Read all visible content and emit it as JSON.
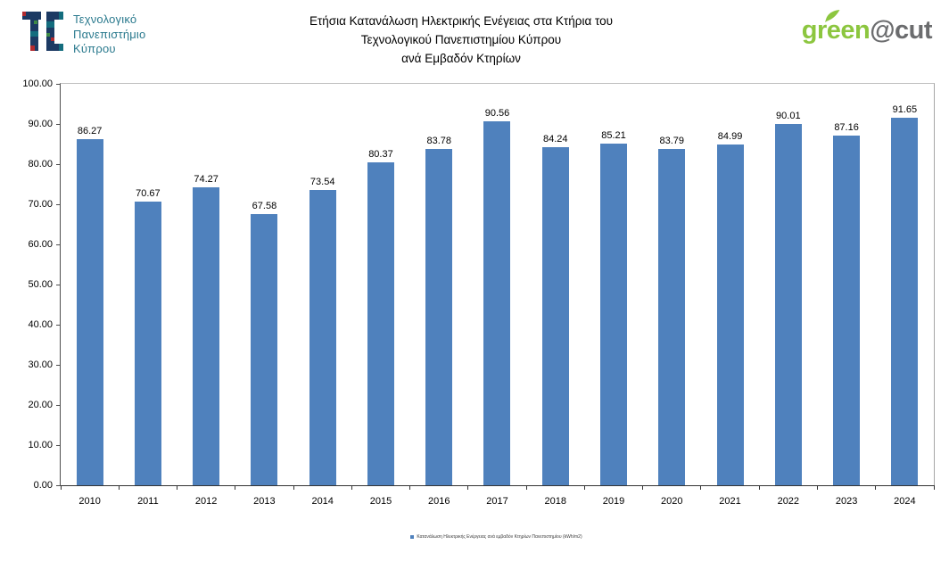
{
  "header": {
    "university": {
      "lines": [
        "Τεχνολογικό",
        "Πανεπιστήμιο",
        "Κύπρου"
      ],
      "text_color": "#2B7A8E"
    },
    "brand": {
      "green": "green",
      "cut": "@cut",
      "green_color": "#8CC63F",
      "gray_color": "#6B6C6E"
    }
  },
  "chart_data": {
    "type": "bar",
    "title_lines": [
      "Ετήσια Κατανάλωση Ηλεκτρικής Ενέγειας στα Κτήρια του",
      "Τεχνολογικού Πανεπιστημίου Κύπρου",
      "ανά Εμβαδόν Κτηρίων"
    ],
    "title": "Ετήσια Κατανάλωση Ηλεκτρικής Ενέγειας στα Κτήρια του Τεχνολογικού Πανεπιστημίου Κύπρου ανά Εμβαδόν Κτηρίων",
    "categories": [
      "2010",
      "2011",
      "2012",
      "2013",
      "2014",
      "2015",
      "2016",
      "2017",
      "2018",
      "2019",
      "2020",
      "2021",
      "2022",
      "2023",
      "2024"
    ],
    "values": [
      86.27,
      70.67,
      74.27,
      67.58,
      73.54,
      80.37,
      83.78,
      90.56,
      84.24,
      85.21,
      83.79,
      84.99,
      90.01,
      87.16,
      91.65
    ],
    "xlabel": "",
    "ylabel": "",
    "ylim": [
      0,
      100
    ],
    "ytick_step": 10,
    "ytick_decimals": 2,
    "grid": false,
    "data_labels": true,
    "bar_color": "#4F81BD",
    "legend_position": "bottom",
    "legend": [
      "Κατανάλωση Ηλεκτρικής Ενέργειας ανά εμβαδόν Κτηρίων Πανεπιστημίου (kWh/m2)"
    ]
  },
  "footer": {
    "legend_label": "Κατανάλωση Ηλεκτρικής Ενέργειας ανά εμβαδόν Κτηρίων Πανεπιστημίου (kWh/m2)"
  }
}
